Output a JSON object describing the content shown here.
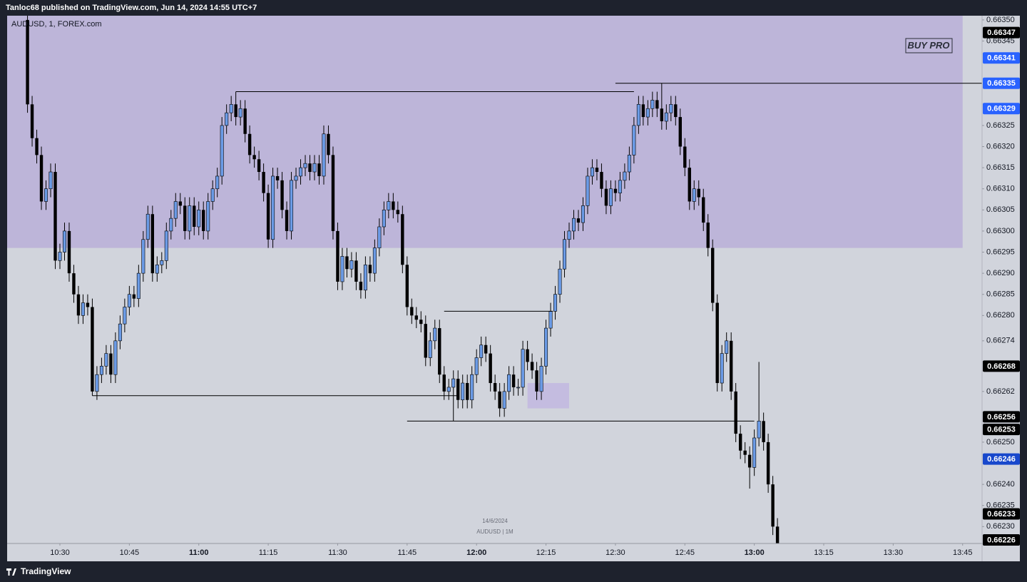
{
  "header": "Tanloc68 published on TradingView.com, Jun 14, 2024 14:55 UTC+7",
  "footer": "TradingView",
  "chart_data": {
    "type": "candlestick",
    "symbol": "AUDUSD, 1, FOREX.com",
    "badge": "BUY PRO",
    "watermark": [
      "14/6/2024",
      "AUDUSD | 1M"
    ],
    "up_color": "#6b9be6",
    "down_color": "#000000",
    "x": [
      623,
      624,
      625,
      626,
      627,
      628,
      629,
      630,
      631,
      632,
      633,
      634,
      635,
      636,
      637,
      638,
      639,
      640,
      641,
      642,
      643,
      644,
      645,
      646,
      647,
      648,
      649,
      650,
      651,
      652,
      653,
      654,
      655,
      656,
      657,
      658,
      659,
      660,
      661,
      662,
      663,
      664,
      665,
      666,
      667,
      668,
      669,
      670,
      671,
      672,
      673,
      674,
      675,
      676,
      677,
      678,
      679,
      680,
      681,
      682,
      683,
      684,
      685,
      686,
      687,
      688,
      689,
      690,
      691,
      692,
      693,
      694,
      695,
      696,
      697,
      698,
      699,
      700,
      701,
      702,
      703,
      704,
      705,
      706,
      707,
      708,
      709,
      710,
      711,
      712,
      713,
      714,
      715,
      716,
      717,
      718,
      719,
      720,
      721,
      722,
      723,
      724,
      725,
      726,
      727,
      728,
      729,
      730,
      731,
      732,
      733,
      734,
      735,
      736,
      737,
      738,
      739,
      740,
      741,
      742,
      743,
      744,
      745,
      746,
      747,
      748,
      749,
      750,
      751,
      752,
      753,
      754,
      755,
      756,
      757,
      758,
      759,
      760,
      761,
      762,
      763,
      764,
      765,
      766,
      767,
      768,
      769,
      770,
      771,
      772,
      773,
      774,
      775,
      776,
      777,
      778,
      779,
      780,
      781,
      782,
      783,
      784,
      785
    ],
    "open": [
      0.6635,
      0.6633,
      0.66322,
      0.66318,
      0.66307,
      0.6631,
      0.66314,
      0.66293,
      0.66295,
      0.663,
      0.6629,
      0.66285,
      0.6628,
      0.66283,
      0.66282,
      0.66262,
      0.66266,
      0.66268,
      0.66271,
      0.66266,
      0.66274,
      0.66278,
      0.66282,
      0.66285,
      0.66284,
      0.6629,
      0.66298,
      0.66304,
      0.6629,
      0.66292,
      0.66293,
      0.663,
      0.66303,
      0.66307,
      0.66306,
      0.663,
      0.66306,
      0.66301,
      0.66305,
      0.663,
      0.66307,
      0.6631,
      0.66313,
      0.66325,
      0.66328,
      0.6633,
      0.66327,
      0.66329,
      0.66323,
      0.66318,
      0.66317,
      0.66314,
      0.66309,
      0.66298,
      0.66313,
      0.66312,
      0.66305,
      0.663,
      0.66312,
      0.66313,
      0.66315,
      0.66316,
      0.66314,
      0.66316,
      0.66313,
      0.66323,
      0.66318,
      0.663,
      0.66288,
      0.66294,
      0.66291,
      0.66293,
      0.66288,
      0.66286,
      0.66292,
      0.6629,
      0.66296,
      0.66301,
      0.66305,
      0.66307,
      0.66305,
      0.66304,
      0.66292,
      0.66282,
      0.6628,
      0.66279,
      0.66278,
      0.6627,
      0.66274,
      0.66277,
      0.66266,
      0.66262,
      0.66263,
      0.66265,
      0.6626,
      0.66264,
      0.6626,
      0.66266,
      0.6627,
      0.66273,
      0.66271,
      0.66264,
      0.66262,
      0.66258,
      0.66262,
      0.66266,
      0.66263,
      0.66263,
      0.66272,
      0.66269,
      0.66267,
      0.66262,
      0.66268,
      0.66277,
      0.66281,
      0.66285,
      0.66291,
      0.66298,
      0.663,
      0.66303,
      0.66302,
      0.66306,
      0.66313,
      0.66315,
      0.66314,
      0.6631,
      0.66306,
      0.6631,
      0.66309,
      0.66312,
      0.66314,
      0.66318,
      0.66325,
      0.6633,
      0.66327,
      0.66329,
      0.66331,
      0.66329,
      0.66326,
      0.66328,
      0.6633,
      0.66327,
      0.6632,
      0.66315,
      0.66307,
      0.6631,
      0.66308,
      0.66302,
      0.66296,
      0.66283,
      0.66264,
      0.66271,
      0.66274,
      0.66262,
      0.66252,
      0.66248,
      0.66247,
      0.66244,
      0.66251,
      0.66255,
      0.6625,
      0.6624,
      0.6623
    ],
    "high": [
      0.66351,
      0.66332,
      0.66324,
      0.6632,
      0.66312,
      0.66316,
      0.66316,
      0.66297,
      0.66302,
      0.66302,
      0.66292,
      0.66287,
      0.66285,
      0.66285,
      0.66284,
      0.66268,
      0.6627,
      0.66273,
      0.66273,
      0.66276,
      0.6628,
      0.66284,
      0.66287,
      0.66287,
      0.66292,
      0.663,
      0.66306,
      0.66306,
      0.66294,
      0.66295,
      0.66302,
      0.66305,
      0.66309,
      0.66309,
      0.66308,
      0.66308,
      0.66308,
      0.66307,
      0.66307,
      0.66309,
      0.66312,
      0.66315,
      0.66327,
      0.6633,
      0.66332,
      0.66333,
      0.66331,
      0.66331,
      0.66325,
      0.6632,
      0.66319,
      0.66316,
      0.66311,
      0.66315,
      0.66315,
      0.66314,
      0.66307,
      0.66314,
      0.66315,
      0.66317,
      0.66318,
      0.66318,
      0.66318,
      0.66318,
      0.66325,
      0.66325,
      0.6632,
      0.66302,
      0.66296,
      0.66296,
      0.66295,
      0.66295,
      0.6629,
      0.66294,
      0.66294,
      0.66298,
      0.66303,
      0.66307,
      0.66309,
      0.66309,
      0.66307,
      0.66306,
      0.66294,
      0.66284,
      0.66282,
      0.66281,
      0.6628,
      0.66276,
      0.66279,
      0.66279,
      0.66268,
      0.66265,
      0.66267,
      0.66267,
      0.66266,
      0.66266,
      0.66268,
      0.66272,
      0.66275,
      0.66275,
      0.66273,
      0.66266,
      0.66264,
      0.66264,
      0.66268,
      0.66268,
      0.66265,
      0.66274,
      0.66274,
      0.66271,
      0.66269,
      0.6627,
      0.66279,
      0.66283,
      0.66287,
      0.66293,
      0.663,
      0.66302,
      0.66305,
      0.66305,
      0.66308,
      0.66315,
      0.66317,
      0.66317,
      0.66316,
      0.66312,
      0.66312,
      0.66312,
      0.66314,
      0.66316,
      0.6632,
      0.66327,
      0.66332,
      0.66332,
      0.66331,
      0.66333,
      0.66333,
      0.66335,
      0.6633,
      0.66332,
      0.66332,
      0.66329,
      0.66322,
      0.66317,
      0.66312,
      0.66312,
      0.6631,
      0.66304,
      0.66298,
      0.66285,
      0.66273,
      0.66276,
      0.66276,
      0.66264,
      0.66254,
      0.6625,
      0.66249,
      0.66253,
      0.66269,
      0.66257,
      0.66252,
      0.66242,
      0.66232
    ],
    "low": [
      0.66328,
      0.6632,
      0.66316,
      0.66305,
      0.66305,
      0.66308,
      0.66291,
      0.66291,
      0.66293,
      0.66288,
      0.66283,
      0.66278,
      0.66278,
      0.6628,
      0.66261,
      0.6626,
      0.66264,
      0.66266,
      0.66264,
      0.66264,
      0.66272,
      0.66276,
      0.6628,
      0.66282,
      0.66282,
      0.66288,
      0.66296,
      0.66288,
      0.66288,
      0.6629,
      0.66291,
      0.66298,
      0.66301,
      0.66304,
      0.66298,
      0.66298,
      0.66299,
      0.66299,
      0.66298,
      0.66298,
      0.66305,
      0.66308,
      0.66311,
      0.66323,
      0.66326,
      0.66325,
      0.66325,
      0.66321,
      0.66316,
      0.66315,
      0.66312,
      0.66307,
      0.66296,
      0.66296,
      0.6631,
      0.66303,
      0.66298,
      0.66298,
      0.6631,
      0.66311,
      0.66313,
      0.66312,
      0.66312,
      0.66311,
      0.66311,
      0.66316,
      0.66298,
      0.66286,
      0.66286,
      0.66289,
      0.66289,
      0.66286,
      0.66284,
      0.66284,
      0.66288,
      0.66288,
      0.66294,
      0.66299,
      0.66303,
      0.66303,
      0.66302,
      0.6629,
      0.6628,
      0.66278,
      0.66277,
      0.66276,
      0.66268,
      0.66268,
      0.66272,
      0.66264,
      0.6626,
      0.6626,
      0.66255,
      0.66258,
      0.66258,
      0.66258,
      0.66258,
      0.66264,
      0.66268,
      0.66269,
      0.66262,
      0.6626,
      0.66256,
      0.66256,
      0.6626,
      0.66261,
      0.66261,
      0.66261,
      0.66267,
      0.66265,
      0.6626,
      0.6626,
      0.66266,
      0.66275,
      0.66279,
      0.66283,
      0.66289,
      0.66296,
      0.66298,
      0.663,
      0.663,
      0.66304,
      0.66311,
      0.66312,
      0.66308,
      0.66304,
      0.66304,
      0.66307,
      0.66307,
      0.6631,
      0.66312,
      0.66316,
      0.66323,
      0.66325,
      0.66325,
      0.66327,
      0.66327,
      0.66324,
      0.66324,
      0.66326,
      0.66325,
      0.66318,
      0.66313,
      0.66305,
      0.66305,
      0.66306,
      0.663,
      0.66294,
      0.66281,
      0.66262,
      0.66262,
      0.66269,
      0.6626,
      0.6625,
      0.66246,
      0.66245,
      0.66239,
      0.66242,
      0.66249,
      0.66248,
      0.66238,
      0.66228,
      0.66226
    ],
    "close": [
      0.6633,
      0.66322,
      0.66318,
      0.66307,
      0.6631,
      0.66314,
      0.66293,
      0.66295,
      0.663,
      0.6629,
      0.66285,
      0.6628,
      0.66283,
      0.66282,
      0.66262,
      0.66266,
      0.66268,
      0.66271,
      0.66266,
      0.66274,
      0.66278,
      0.66282,
      0.66285,
      0.66284,
      0.6629,
      0.66298,
      0.66304,
      0.6629,
      0.66292,
      0.66293,
      0.663,
      0.66303,
      0.66307,
      0.66306,
      0.663,
      0.66306,
      0.66301,
      0.66305,
      0.663,
      0.66307,
      0.6631,
      0.66313,
      0.66325,
      0.66328,
      0.6633,
      0.66327,
      0.66329,
      0.66323,
      0.66318,
      0.66317,
      0.66314,
      0.66309,
      0.66298,
      0.66313,
      0.66312,
      0.66305,
      0.663,
      0.66312,
      0.66313,
      0.66315,
      0.66316,
      0.66314,
      0.66316,
      0.66313,
      0.66323,
      0.66318,
      0.663,
      0.66288,
      0.66294,
      0.66291,
      0.66293,
      0.66288,
      0.66286,
      0.66292,
      0.6629,
      0.66296,
      0.66301,
      0.66305,
      0.66307,
      0.66305,
      0.66304,
      0.66292,
      0.66282,
      0.6628,
      0.66279,
      0.66278,
      0.6627,
      0.66274,
      0.66277,
      0.66266,
      0.66262,
      0.66263,
      0.66265,
      0.6626,
      0.66264,
      0.6626,
      0.66266,
      0.6627,
      0.66273,
      0.66271,
      0.66264,
      0.66262,
      0.66258,
      0.66262,
      0.66266,
      0.66263,
      0.66263,
      0.66272,
      0.66269,
      0.66267,
      0.66262,
      0.66268,
      0.66277,
      0.66281,
      0.66285,
      0.66291,
      0.66298,
      0.663,
      0.66303,
      0.66302,
      0.66306,
      0.66313,
      0.66315,
      0.66314,
      0.6631,
      0.66306,
      0.6631,
      0.66309,
      0.66312,
      0.66314,
      0.66318,
      0.66325,
      0.6633,
      0.66327,
      0.66329,
      0.66331,
      0.66329,
      0.66326,
      0.66328,
      0.6633,
      0.66327,
      0.6632,
      0.66315,
      0.66307,
      0.6631,
      0.66308,
      0.66302,
      0.66296,
      0.66283,
      0.66264,
      0.66271,
      0.66274,
      0.66262,
      0.66252,
      0.66248,
      0.66247,
      0.66244,
      0.66251,
      0.66255,
      0.6625,
      0.6624,
      0.6623,
      0.66226
    ],
    "xlim": [
      618.6,
      829.2
    ],
    "ylim": [
      0.66226,
      0.66351
    ],
    "xticks": [
      {
        "value": 630,
        "label": "10:30"
      },
      {
        "value": 645,
        "label": "10:45"
      },
      {
        "value": 660,
        "label": "11:00"
      },
      {
        "value": 675,
        "label": "11:15"
      },
      {
        "value": 690,
        "label": "11:30"
      },
      {
        "value": 705,
        "label": "11:45"
      },
      {
        "value": 720,
        "label": "12:00"
      },
      {
        "value": 735,
        "label": "12:15"
      },
      {
        "value": 750,
        "label": "12:30"
      },
      {
        "value": 765,
        "label": "12:45"
      },
      {
        "value": 780,
        "label": "13:00"
      },
      {
        "value": 795,
        "label": "13:15"
      },
      {
        "value": 810,
        "label": "13:30"
      },
      {
        "value": 825,
        "label": "13:45"
      }
    ],
    "yticks": [
      {
        "value": 0.6635,
        "label": "0.66350"
      },
      0.66345,
      0.66325,
      {
        "value": 0.6632,
        "label": "0.66320"
      },
      0.66315,
      {
        "value": 0.6631,
        "label": "0.66310"
      },
      0.66305,
      {
        "value": 0.663,
        "label": "0.66300"
      },
      0.66295,
      {
        "value": 0.6629,
        "label": "0.66290"
      },
      0.66285,
      {
        "value": 0.6628,
        "label": "0.66280"
      },
      0.66274,
      0.66262,
      {
        "value": 0.6625,
        "label": "0.66250"
      },
      {
        "value": 0.6624,
        "label": "0.66240"
      },
      0.66235,
      {
        "value": 0.6623,
        "label": "0.66230"
      }
    ],
    "grid": false,
    "price_labels": [
      {
        "value": 0.66347,
        "color": "#000000"
      },
      {
        "value": 0.66341,
        "color": "#2962ff"
      },
      {
        "value": 0.66335,
        "color": "#2962ff"
      },
      {
        "value": 0.66329,
        "color": "#2962ff"
      },
      {
        "value": 0.66268,
        "color": "#000000"
      },
      {
        "value": 0.66256,
        "color": "#000000"
      },
      {
        "value": 0.66253,
        "color": "#000000"
      },
      {
        "value": 0.66246,
        "color": "#1848cc"
      },
      {
        "value": 0.66233,
        "color": "#000000"
      },
      {
        "value": 0.66226,
        "color": "#000000"
      }
    ],
    "zones": [
      {
        "top": 0.66351,
        "bottom": 0.66296,
        "start": 618.6,
        "end": 825,
        "color": "#bdb5d9"
      },
      {
        "top": 0.66264,
        "bottom": 0.66258,
        "start": 731,
        "end": 740,
        "color": "#c4bce0"
      }
    ],
    "levels": [
      {
        "price": 0.66333,
        "start": 668,
        "end": 754
      },
      {
        "price": 0.66335,
        "start": 750,
        "end": 829.2
      },
      {
        "price": 0.66281,
        "start": 713,
        "end": 736.5
      },
      {
        "price": 0.66261,
        "start": 637,
        "end": 716
      },
      {
        "price": 0.66255,
        "start": 705,
        "end": 780
      }
    ]
  }
}
